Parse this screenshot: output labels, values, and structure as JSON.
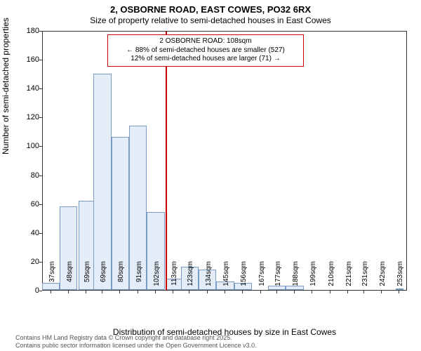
{
  "chart": {
    "type": "histogram",
    "title_main": "2, OSBORNE ROAD, EAST COWES, PO32 6RX",
    "title_sub": "Size of property relative to semi-detached houses in East Cowes",
    "ylabel": "Number of semi-detached properties",
    "xlabel": "Distribution of semi-detached houses by size in East Cowes",
    "background_color": "#ffffff",
    "bar_fill": "#e4ecf7",
    "bar_border": "#7a9bc4",
    "marker_color": "#cc0000",
    "marker_x_value": 108,
    "x_min": 32,
    "x_max": 258,
    "ylim_min": 0,
    "ylim_max": 180,
    "ytick_step": 20,
    "yticks": [
      0,
      20,
      40,
      60,
      80,
      100,
      120,
      140,
      160,
      180
    ],
    "xticks": [
      "37sqm",
      "48sqm",
      "59sqm",
      "69sqm",
      "80sqm",
      "91sqm",
      "102sqm",
      "113sqm",
      "123sqm",
      "134sqm",
      "145sqm",
      "156sqm",
      "167sqm",
      "177sqm",
      "188sqm",
      "199sqm",
      "210sqm",
      "221sqm",
      "231sqm",
      "242sqm",
      "253sqm"
    ],
    "xtick_values": [
      37,
      48,
      59,
      69,
      80,
      91,
      102,
      113,
      123,
      134,
      145,
      156,
      167,
      177,
      188,
      199,
      210,
      221,
      231,
      242,
      253
    ],
    "bars": [
      {
        "x": 37,
        "w": 11,
        "h": 5
      },
      {
        "x": 48,
        "w": 11,
        "h": 58
      },
      {
        "x": 59,
        "w": 10,
        "h": 62
      },
      {
        "x": 69,
        "w": 11,
        "h": 150
      },
      {
        "x": 80,
        "w": 11,
        "h": 106
      },
      {
        "x": 91,
        "w": 11,
        "h": 114
      },
      {
        "x": 102,
        "w": 11,
        "h": 54
      },
      {
        "x": 113,
        "w": 10,
        "h": 8
      },
      {
        "x": 123,
        "w": 11,
        "h": 16
      },
      {
        "x": 134,
        "w": 11,
        "h": 14
      },
      {
        "x": 145,
        "w": 11,
        "h": 6
      },
      {
        "x": 156,
        "w": 11,
        "h": 5
      },
      {
        "x": 167,
        "w": 10,
        "h": 0
      },
      {
        "x": 177,
        "w": 11,
        "h": 3
      },
      {
        "x": 188,
        "w": 11,
        "h": 3
      },
      {
        "x": 199,
        "w": 11,
        "h": 0
      },
      {
        "x": 210,
        "w": 11,
        "h": 0
      },
      {
        "x": 221,
        "w": 10,
        "h": 0
      },
      {
        "x": 231,
        "w": 11,
        "h": 0
      },
      {
        "x": 242,
        "w": 11,
        "h": 0
      },
      {
        "x": 253,
        "w": 5,
        "h": 1
      }
    ],
    "annotation": {
      "line1": "2 OSBORNE ROAD: 108sqm",
      "line2": "← 88% of semi-detached houses are smaller (527)",
      "line3": "12% of semi-detached houses are larger (71) →"
    },
    "footer_line1": "Contains HM Land Registry data © Crown copyright and database right 2025.",
    "footer_line2": "Contains public sector information licensed under the Open Government Licence v3.0.",
    "title_fontsize": 13,
    "subtitle_fontsize": 12,
    "label_fontsize": 12,
    "tick_fontsize": 11,
    "footer_fontsize": 9
  }
}
